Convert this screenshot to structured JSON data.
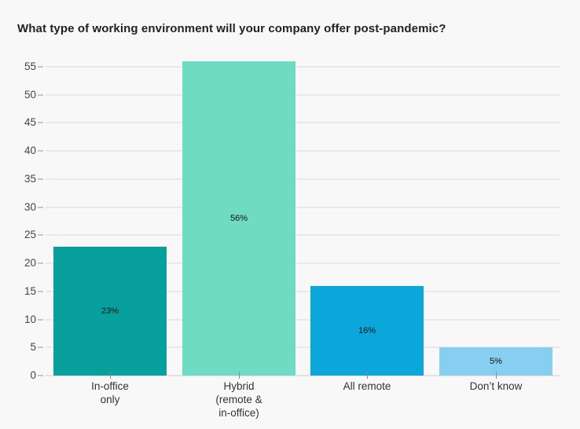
{
  "page": {
    "background_color": "#f8f8f8"
  },
  "chart_data": {
    "type": "bar",
    "title": "What type of working environment will your company offer post-pandemic?",
    "categories": [
      "In-office\nonly",
      "Hybrid\n(remote &\nin-office)",
      "All remote",
      "Don’t know"
    ],
    "values": [
      23,
      56,
      16,
      5
    ],
    "value_labels": [
      "23%",
      "56%",
      "16%",
      "5%"
    ],
    "series_colors": [
      "#07a09d",
      "#70dbc3",
      "#0ba7da",
      "#87cff1"
    ],
    "yticks": [
      0,
      5,
      10,
      15,
      20,
      25,
      30,
      35,
      40,
      45,
      50,
      55
    ],
    "ylim": [
      0,
      55
    ],
    "xlabel": "",
    "ylabel": "",
    "grid": true,
    "legend": "none",
    "value_label_position": "center-of-bar",
    "colors": {
      "background": "#f8f8f8",
      "gridline": "#e9e9e9",
      "axis_line": "#e3e3e3",
      "y_tick_dash": "#c6c6c6",
      "x_tick_mark": "#8a8a8a",
      "title_text": "#222222",
      "y_axis_text": "#444444",
      "x_axis_text": "#333333",
      "value_label_text": "#111111"
    }
  }
}
